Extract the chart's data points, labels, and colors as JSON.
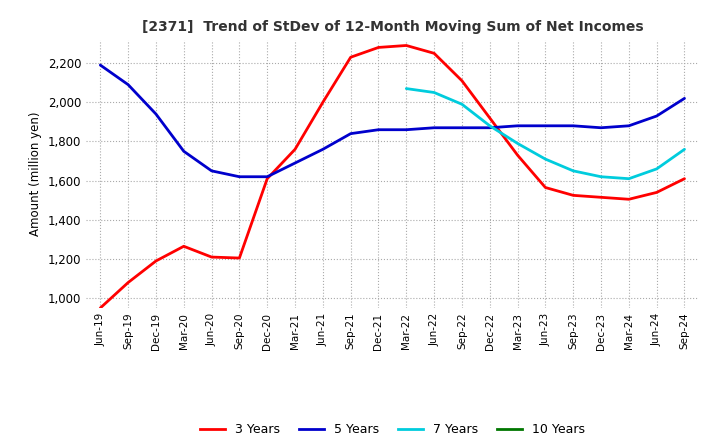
{
  "title": "[2371]  Trend of StDev of 12-Month Moving Sum of Net Incomes",
  "ylabel": "Amount (million yen)",
  "ylim": [
    950,
    2320
  ],
  "yticks": [
    1000,
    1200,
    1400,
    1600,
    1800,
    2000,
    2200
  ],
  "background_color": "#ffffff",
  "grid_color": "#aaaaaa",
  "dates": [
    "Jun-19",
    "Sep-19",
    "Dec-19",
    "Mar-20",
    "Jun-20",
    "Sep-20",
    "Dec-20",
    "Mar-21",
    "Jun-21",
    "Sep-21",
    "Dec-21",
    "Mar-22",
    "Jun-22",
    "Sep-22",
    "Dec-22",
    "Mar-23",
    "Jun-23",
    "Sep-23",
    "Dec-23",
    "Mar-24",
    "Jun-24",
    "Sep-24"
  ],
  "series_3y": [
    950,
    1080,
    1190,
    1265,
    1210,
    1205,
    1610,
    1760,
    2000,
    2230,
    2280,
    2290,
    2250,
    2110,
    1920,
    1730,
    1565,
    1525,
    1515,
    1505,
    1540,
    1610
  ],
  "series_5y": [
    2190,
    2090,
    1940,
    1750,
    1650,
    1620,
    1620,
    1690,
    1760,
    1840,
    1860,
    1860,
    1870,
    1870,
    1870,
    1880,
    1880,
    1880,
    1870,
    1880,
    1930,
    2020
  ],
  "series_7y": [
    null,
    null,
    null,
    null,
    null,
    null,
    null,
    null,
    null,
    null,
    null,
    2070,
    2050,
    1990,
    1880,
    1790,
    1710,
    1650,
    1620,
    1610,
    1660,
    1760
  ],
  "series_10y": [
    null,
    null,
    null,
    null,
    null,
    null,
    null,
    null,
    null,
    null,
    null,
    null,
    null,
    null,
    null,
    null,
    null,
    null,
    null,
    null,
    null,
    null
  ],
  "color_3y": "#ff0000",
  "color_5y": "#0000cc",
  "color_7y": "#00ccdd",
  "color_10y": "#007700",
  "linewidth": 2.0
}
